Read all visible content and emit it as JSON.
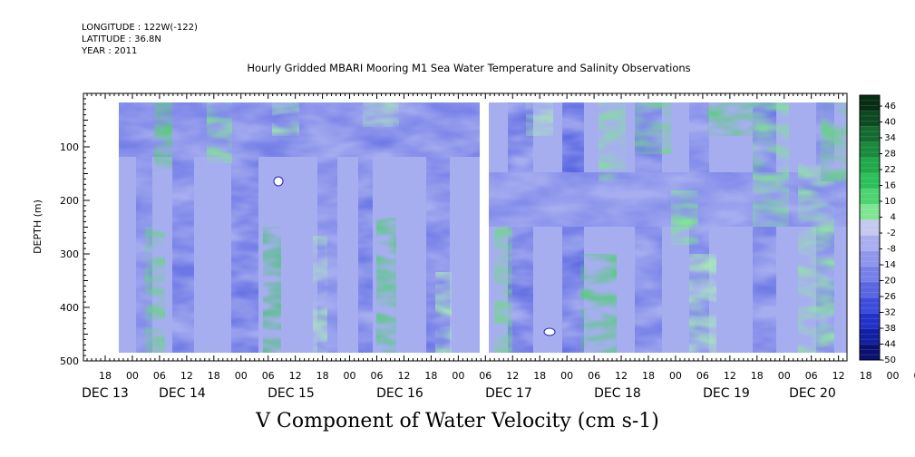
{
  "header": {
    "longitude": "LONGITUDE : 122W(-122)",
    "latitude": "LATITUDE : 36.8N",
    "year": "YEAR : 2011"
  },
  "chart_data": {
    "type": "heatmap",
    "title": "Hourly Gridded MBARI Mooring M1 Sea Water Temperature and Salinity Observations",
    "xlabel": "V Component of Water Velocity (cm s-1)",
    "ylabel": "DEPTH (m)",
    "ylim": [
      500,
      0
    ],
    "y_ticks": [
      100,
      200,
      300,
      400,
      500
    ],
    "x_hour_ticks": [
      "18",
      "00",
      "06",
      "12",
      "18",
      "00",
      "06",
      "12",
      "18",
      "00",
      "06",
      "12",
      "18",
      "00",
      "06",
      "12",
      "18",
      "00",
      "06",
      "12",
      "18",
      "00",
      "06",
      "12",
      "18",
      "00",
      "06",
      "12",
      "18",
      "00",
      "06",
      "12"
    ],
    "x_day_labels": [
      "DEC 13",
      "DEC 14",
      "DEC 15",
      "DEC 16",
      "DEC 17",
      "DEC 18",
      "DEC 19",
      "DEC 20"
    ],
    "data_depth_range": [
      20,
      485
    ],
    "colorbar": {
      "labels": [
        "46",
        "40",
        "34",
        "28",
        "22",
        "16",
        "10",
        "4",
        "-2",
        "-8",
        "-14",
        "-20",
        "-26",
        "-32",
        "-38",
        "-44",
        "-50"
      ],
      "range": [
        -50,
        52
      ],
      "colors": [
        "#072d14",
        "#0c4a22",
        "#136b30",
        "#1a8a3c",
        "#21a84a",
        "#2cc05a",
        "#4cd470",
        "#7fe593",
        "#c6c9ef",
        "#a9aef0",
        "#8f96ec",
        "#7680e8",
        "#5a66e2",
        "#3d4cdc",
        "#2232c8",
        "#121fa0",
        "#0a1170"
      ]
    },
    "legend_position": "right"
  }
}
